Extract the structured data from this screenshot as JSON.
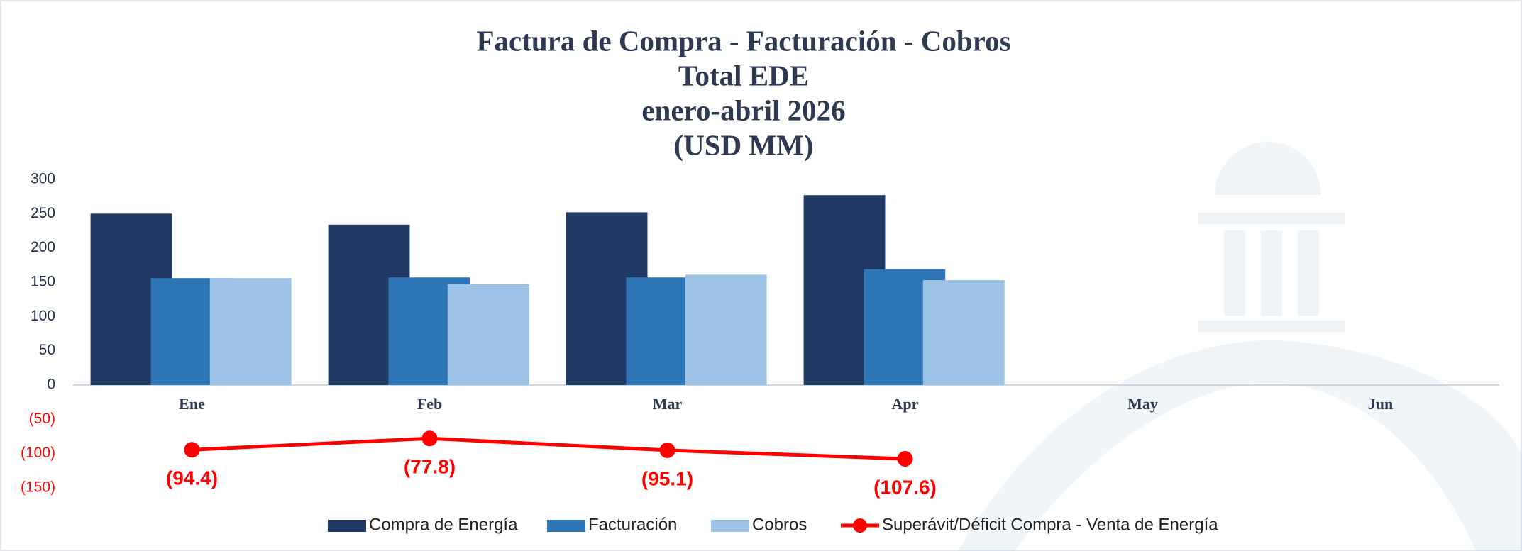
{
  "chart_data": {
    "type": "bar",
    "title": [
      "Factura de Compra - Facturación - Cobros",
      "Total EDE",
      "enero-abril 2026",
      "(USD MM)"
    ],
    "categories": [
      "Ene",
      "Feb",
      "Mar",
      "Apr",
      "May",
      "Jun"
    ],
    "series": [
      {
        "name": "Compra de Energía",
        "color": "#203864",
        "values": [
          250,
          234,
          252,
          277,
          null,
          null
        ]
      },
      {
        "name": "Facturación",
        "color": "#2e75b6",
        "values": [
          156,
          157,
          157,
          169,
          null,
          null
        ]
      },
      {
        "name": "Cobros",
        "color": "#9dc3e6",
        "values": [
          156,
          147,
          161,
          153,
          null,
          null
        ]
      },
      {
        "name": "Superávit/Déficit Compra - Venta de Energía",
        "type": "line",
        "color": "#ff0000",
        "values": [
          -94.4,
          -77.8,
          -95.1,
          -107.6,
          null,
          null
        ],
        "value_labels": [
          "(94.4)",
          "(77.8)",
          "(95.1)",
          "(107.6)",
          null,
          null
        ]
      }
    ],
    "ylim": [
      -150,
      300
    ],
    "yticks": [
      {
        "value": -150,
        "label": "(150)"
      },
      {
        "value": -100,
        "label": "(100)"
      },
      {
        "value": -50,
        "label": "(50)"
      },
      0,
      50,
      100,
      150,
      200,
      250,
      300
    ],
    "legend": "bottom"
  }
}
